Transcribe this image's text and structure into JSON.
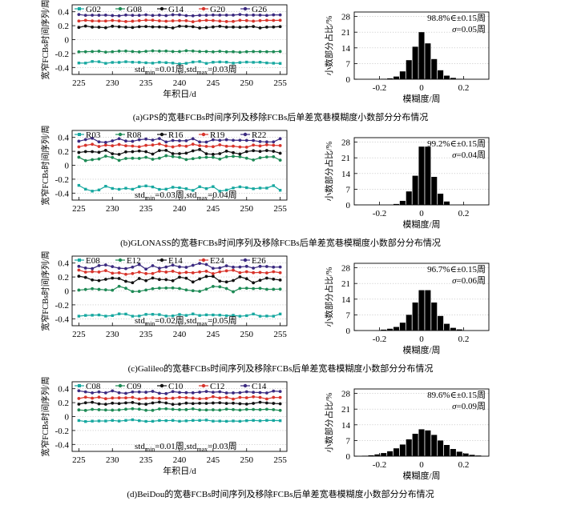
{
  "chart_data": [
    {
      "type": "line",
      "id": "gps",
      "panel_title": "(a)GPS的宽巷FCBs时间序列及移除FCBs后单差宽巷模糊度小数部分分布情况",
      "ylabel": "宽窄FCBs时间序列/周",
      "xlabel": "年积日/d",
      "x_ticks": [
        "225",
        "230",
        "235",
        "240",
        "245",
        "250",
        "255"
      ],
      "y_ticks": [
        "-0.4",
        "-0.2",
        "0",
        "0.2",
        "0.4"
      ],
      "xlim": [
        224,
        256
      ],
      "ylim": [
        -0.5,
        0.5
      ],
      "std_text": {
        "a": "std",
        "b": "min",
        "c": "=0.01周,std",
        "d": "max",
        "e": "=0.03周"
      },
      "series": [
        {
          "name": "G02",
          "color": "#17a8a0",
          "marker": "square",
          "base": -0.33,
          "amp": 0.012,
          "seed": 1
        },
        {
          "name": "G08",
          "color": "#1d8a55",
          "marker": "circle",
          "base": -0.17,
          "amp": 0.008,
          "seed": 2
        },
        {
          "name": "G14",
          "color": "#111111",
          "marker": "circle",
          "base": 0.18,
          "amp": 0.01,
          "seed": 3
        },
        {
          "name": "G20",
          "color": "#d8342b",
          "marker": "circle",
          "base": 0.27,
          "amp": 0.009,
          "seed": 4
        },
        {
          "name": "G26",
          "color": "#3b2a80",
          "marker": "circle",
          "base": 0.35,
          "amp": 0.008,
          "seed": 5
        }
      ],
      "hist": {
        "type": "bar",
        "xlabel": "模糊度/周",
        "ylabel": "小数部分占比/%",
        "x_ticks": [
          "-0.2",
          "0",
          "0.2"
        ],
        "y_ticks": [
          "0",
          "7",
          "14",
          "21",
          "28"
        ],
        "ylim": [
          0,
          30
        ],
        "annot1": "98.8%∈±0.15周",
        "annot2_sym": "σ",
        "annot2_val": "=0.05周",
        "bin_centers": [
          -0.18,
          -0.15,
          -0.12,
          -0.09,
          -0.06,
          -0.03,
          0.0,
          0.03,
          0.06,
          0.09,
          0.12,
          0.15,
          0.18
        ],
        "values": [
          0.2,
          0.4,
          1.2,
          3.5,
          8.5,
          14.5,
          21.0,
          16.0,
          9.0,
          4.0,
          1.6,
          0.6,
          0.2
        ]
      }
    },
    {
      "type": "line",
      "id": "glonass",
      "panel_title": "(b)GLONASS的宽巷FCBs时间序列及移除FCBs后单差宽巷模糊度小数部分分布情况",
      "ylabel": "宽窄FCBs时间序列/周",
      "xlabel": "",
      "x_ticks": [
        "225",
        "230",
        "235",
        "240",
        "245",
        "250",
        "255"
      ],
      "y_ticks": [
        "-0.4",
        "-0.2",
        "0",
        "0.2",
        "0.4"
      ],
      "xlim": [
        224,
        256
      ],
      "ylim": [
        -0.5,
        0.5
      ],
      "std_text": {
        "a": "std",
        "b": "min",
        "c": "=0.03周,std",
        "d": "max",
        "e": "=0.04周"
      },
      "series": [
        {
          "name": "R03",
          "color": "#17a8a0",
          "marker": "square",
          "base": -0.33,
          "amp": 0.03,
          "seed": 11
        },
        {
          "name": "R08",
          "color": "#1d8a55",
          "marker": "circle",
          "base": 0.1,
          "amp": 0.025,
          "seed": 12
        },
        {
          "name": "R16",
          "color": "#111111",
          "marker": "circle",
          "base": 0.19,
          "amp": 0.025,
          "seed": 13
        },
        {
          "name": "R19",
          "color": "#d8342b",
          "marker": "circle",
          "base": 0.28,
          "amp": 0.02,
          "seed": 14
        },
        {
          "name": "R22",
          "color": "#3b2a80",
          "marker": "circle",
          "base": 0.36,
          "amp": 0.02,
          "seed": 15
        }
      ],
      "hist": {
        "type": "bar",
        "xlabel": "模糊度/周",
        "ylabel": "小数部分占比/%",
        "x_ticks": [
          "-0.2",
          "0",
          "0.2"
        ],
        "y_ticks": [
          "0",
          "7",
          "14",
          "21",
          "28"
        ],
        "ylim": [
          0,
          30
        ],
        "annot1": "99.2%∈±0.15周",
        "annot2_sym": "σ",
        "annot2_val": "=0.04周",
        "bin_centers": [
          -0.12,
          -0.09,
          -0.06,
          -0.03,
          0.0,
          0.03,
          0.06,
          0.09,
          0.12
        ],
        "values": [
          0.4,
          1.8,
          6.0,
          13.0,
          26.0,
          26.0,
          12.5,
          5.0,
          1.5
        ]
      }
    },
    {
      "type": "line",
      "id": "galileo",
      "panel_title": "(c)Galileo的宽巷FCBs时间序列及移除FCBs后单差宽巷模糊度小数部分分布情况",
      "ylabel": "宽窄FCBs时间序列/周",
      "xlabel": "",
      "x_ticks": [
        "225",
        "230",
        "235",
        "240",
        "245",
        "250",
        "255"
      ],
      "y_ticks": [
        "-0.4",
        "-0.2",
        "0",
        "0.2",
        "0.4"
      ],
      "xlim": [
        224,
        256
      ],
      "ylim": [
        -0.5,
        0.5
      ],
      "std_text": {
        "a": "std",
        "b": "min",
        "c": "=0.02周,std",
        "d": "max",
        "e": "=0.05周"
      },
      "series": [
        {
          "name": "E08",
          "color": "#17a8a0",
          "marker": "square",
          "base": -0.35,
          "amp": 0.015,
          "seed": 21
        },
        {
          "name": "E12",
          "color": "#1d8a55",
          "marker": "circle",
          "base": 0.03,
          "amp": 0.03,
          "seed": 22
        },
        {
          "name": "E14",
          "color": "#111111",
          "marker": "circle",
          "base": 0.16,
          "amp": 0.035,
          "seed": 23
        },
        {
          "name": "E24",
          "color": "#d8342b",
          "marker": "circle",
          "base": 0.27,
          "amp": 0.03,
          "seed": 24
        },
        {
          "name": "E26",
          "color": "#3b2a80",
          "marker": "circle",
          "base": 0.35,
          "amp": 0.03,
          "seed": 25
        }
      ],
      "hist": {
        "type": "bar",
        "xlabel": "模糊度/周",
        "ylabel": "小数部分占比/%",
        "x_ticks": [
          "-0.2",
          "0",
          "0.2"
        ],
        "y_ticks": [
          "0",
          "7",
          "14",
          "21",
          "28"
        ],
        "ylim": [
          0,
          30
        ],
        "annot1": "96.7%∈±0.15周",
        "annot2_sym": "σ",
        "annot2_val": "=0.06周",
        "bin_centers": [
          -0.18,
          -0.15,
          -0.12,
          -0.09,
          -0.06,
          -0.03,
          0.0,
          0.03,
          0.06,
          0.09,
          0.12,
          0.15,
          0.18
        ],
        "values": [
          0.4,
          0.8,
          1.6,
          3.5,
          7.0,
          12.5,
          18.0,
          18.0,
          12.5,
          6.5,
          3.0,
          1.2,
          0.5
        ]
      }
    },
    {
      "type": "line",
      "id": "beidou",
      "panel_title": "(d)BeiDou的宽巷FCBs时间序列及移除FCBs后单差宽巷模糊度小数部分分布情况",
      "ylabel": "宽窄FCBs时间序列/周",
      "xlabel": "年积日/d",
      "x_ticks": [
        "225",
        "230",
        "235",
        "240",
        "245",
        "250",
        "255"
      ],
      "y_ticks": [
        "-0.4",
        "-0.2",
        "0",
        "0.2",
        "0.4"
      ],
      "xlim": [
        224,
        256
      ],
      "ylim": [
        -0.5,
        0.5
      ],
      "std_text": {
        "a": "std",
        "b": "min",
        "c": "=0.01周,std",
        "d": "max",
        "e": "=0.03周"
      },
      "series": [
        {
          "name": "C08",
          "color": "#17a8a0",
          "marker": "square",
          "base": -0.06,
          "amp": 0.01,
          "seed": 31
        },
        {
          "name": "C09",
          "color": "#1d8a55",
          "marker": "circle",
          "base": 0.1,
          "amp": 0.008,
          "seed": 32
        },
        {
          "name": "C10",
          "color": "#111111",
          "marker": "circle",
          "base": 0.19,
          "amp": 0.012,
          "seed": 33
        },
        {
          "name": "C12",
          "color": "#d8342b",
          "marker": "circle",
          "base": 0.27,
          "amp": 0.012,
          "seed": 34
        },
        {
          "name": "C14",
          "color": "#3b2a80",
          "marker": "circle",
          "base": 0.35,
          "amp": 0.015,
          "seed": 35
        }
      ],
      "hist": {
        "type": "bar",
        "xlabel": "模糊度/周",
        "ylabel": "小数部分占比/%",
        "x_ticks": [
          "-0.2",
          "0",
          "0.2"
        ],
        "y_ticks": [
          "0",
          "7",
          "14",
          "21",
          "28"
        ],
        "ylim": [
          0,
          30
        ],
        "annot1": "89.6%∈±0.15周",
        "annot2_sym": "σ",
        "annot2_val": "=0.09周",
        "bin_centers": [
          -0.27,
          -0.24,
          -0.21,
          -0.18,
          -0.15,
          -0.12,
          -0.09,
          -0.06,
          -0.03,
          0.0,
          0.03,
          0.06,
          0.09,
          0.12,
          0.15,
          0.18,
          0.21,
          0.24,
          0.27
        ],
        "values": [
          0.2,
          0.4,
          0.8,
          1.4,
          2.2,
          3.5,
          5.2,
          7.5,
          10.0,
          12.0,
          11.5,
          9.5,
          7.0,
          5.0,
          3.2,
          2.0,
          1.2,
          0.6,
          0.3
        ]
      }
    }
  ]
}
